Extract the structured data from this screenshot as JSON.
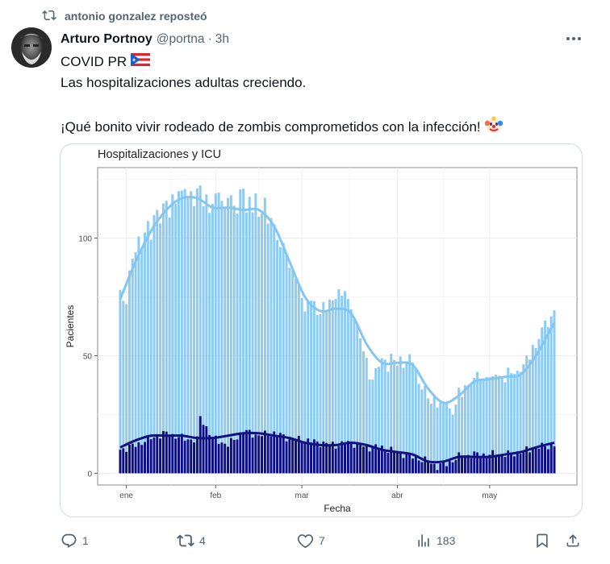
{
  "repost": {
    "text": "antonio gonzalez reposteó"
  },
  "tweet": {
    "author_name": "Arturo Portnoy",
    "handle": "@portna",
    "separator": "·",
    "time": "3h",
    "line1": "COVID PR",
    "line2": "Las hospitalizaciones adultas creciendo.",
    "line3": "¡Qué bonito vivir rodeado de zombis comprometidos con la infección!"
  },
  "chart_data": {
    "type": "bar",
    "title": "Hospitalizaciones y ICU",
    "xlabel": "Fecha",
    "ylabel": "Pacientes",
    "x_tick_labels": [
      "ene",
      "feb",
      "mar",
      "abr",
      "may"
    ],
    "y_ticks": [
      0,
      50,
      100
    ],
    "ylim": [
      -5,
      130
    ],
    "grid": true,
    "legend": "none",
    "colors": {
      "hospitalizaciones": "#8ecbf2",
      "hosp_trend": "#84c6f0",
      "icu": "#0d0d86",
      "icu_trend": "#101080"
    },
    "hospitalizaciones_anchors": [
      [
        0,
        78
      ],
      [
        1,
        73
      ],
      [
        2,
        74
      ],
      [
        3,
        85
      ],
      [
        4,
        90
      ],
      [
        5,
        95
      ],
      [
        6,
        100
      ],
      [
        7,
        97
      ],
      [
        8,
        103
      ],
      [
        9,
        105
      ],
      [
        10,
        100
      ],
      [
        11,
        110
      ],
      [
        12,
        112
      ],
      [
        13,
        108
      ],
      [
        14,
        113
      ],
      [
        15,
        115
      ],
      [
        16,
        110
      ],
      [
        17,
        118
      ],
      [
        18,
        116
      ],
      [
        19,
        120
      ],
      [
        20,
        118
      ],
      [
        21,
        122
      ],
      [
        22,
        118
      ],
      [
        23,
        120
      ],
      [
        24,
        115
      ],
      [
        25,
        119
      ],
      [
        26,
        122
      ],
      [
        27,
        115
      ],
      [
        28,
        118
      ],
      [
        29,
        112
      ],
      [
        30,
        114
      ],
      [
        31,
        117
      ],
      [
        32,
        121
      ],
      [
        33,
        116
      ],
      [
        34,
        113
      ],
      [
        35,
        118
      ],
      [
        36,
        116
      ],
      [
        37,
        114
      ],
      [
        38,
        112
      ],
      [
        39,
        120
      ],
      [
        40,
        122
      ],
      [
        41,
        110
      ],
      [
        42,
        116
      ],
      [
        43,
        113
      ],
      [
        44,
        119
      ],
      [
        45,
        109
      ],
      [
        46,
        111
      ],
      [
        47,
        115
      ],
      [
        48,
        107
      ],
      [
        49,
        110
      ],
      [
        50,
        105
      ],
      [
        51,
        100
      ],
      [
        52,
        95
      ],
      [
        53,
        97
      ],
      [
        54,
        95
      ],
      [
        55,
        87
      ],
      [
        56,
        86
      ],
      [
        57,
        83
      ],
      [
        58,
        78
      ],
      [
        59,
        76
      ],
      [
        60,
        70
      ],
      [
        61,
        72
      ],
      [
        62,
        74
      ],
      [
        63,
        72
      ],
      [
        64,
        67
      ],
      [
        65,
        70
      ],
      [
        66,
        72
      ],
      [
        67,
        69
      ],
      [
        68,
        74
      ],
      [
        69,
        72
      ],
      [
        70,
        76
      ],
      [
        71,
        79
      ],
      [
        72,
        74
      ],
      [
        73,
        78
      ],
      [
        74,
        73
      ],
      [
        75,
        70
      ],
      [
        76,
        68
      ],
      [
        77,
        62
      ],
      [
        78,
        57
      ],
      [
        79,
        52
      ],
      [
        80,
        48
      ],
      [
        81,
        42
      ],
      [
        82,
        40
      ],
      [
        83,
        43
      ],
      [
        84,
        46
      ],
      [
        85,
        48
      ],
      [
        86,
        49
      ],
      [
        87,
        45
      ],
      [
        88,
        49
      ],
      [
        89,
        48
      ],
      [
        90,
        46
      ],
      [
        91,
        49
      ],
      [
        92,
        47
      ],
      [
        93,
        47
      ],
      [
        94,
        49
      ],
      [
        95,
        48
      ],
      [
        96,
        44
      ],
      [
        97,
        39
      ],
      [
        98,
        37
      ],
      [
        99,
        35
      ],
      [
        100,
        32
      ],
      [
        101,
        30
      ],
      [
        102,
        32
      ],
      [
        103,
        30
      ],
      [
        104,
        29
      ],
      [
        105,
        28
      ],
      [
        106,
        31
      ],
      [
        107,
        27
      ],
      [
        108,
        26
      ],
      [
        109,
        30
      ],
      [
        110,
        34
      ],
      [
        111,
        33
      ],
      [
        112,
        38
      ],
      [
        113,
        37
      ],
      [
        114,
        40
      ],
      [
        115,
        39
      ],
      [
        116,
        42
      ],
      [
        117,
        41
      ],
      [
        118,
        39
      ],
      [
        119,
        42
      ],
      [
        120,
        41
      ],
      [
        121,
        39
      ],
      [
        122,
        43
      ],
      [
        123,
        42
      ],
      [
        124,
        41
      ],
      [
        125,
        40
      ],
      [
        126,
        43
      ],
      [
        127,
        42
      ],
      [
        128,
        44
      ],
      [
        129,
        43
      ],
      [
        130,
        44
      ],
      [
        131,
        46
      ],
      [
        132,
        48
      ],
      [
        133,
        50
      ],
      [
        134,
        55
      ],
      [
        135,
        53
      ],
      [
        136,
        58
      ],
      [
        137,
        60
      ],
      [
        138,
        65
      ],
      [
        139,
        64
      ],
      [
        140,
        66
      ],
      [
        141,
        70
      ]
    ],
    "hospitalizaciones_trend": [
      [
        0,
        74
      ],
      [
        5,
        90
      ],
      [
        10,
        103
      ],
      [
        15,
        112
      ],
      [
        20,
        117
      ],
      [
        25,
        117
      ],
      [
        30,
        113
      ],
      [
        35,
        113
      ],
      [
        40,
        112
      ],
      [
        45,
        112
      ],
      [
        50,
        105
      ],
      [
        55,
        90
      ],
      [
        60,
        75
      ],
      [
        65,
        69
      ],
      [
        70,
        70
      ],
      [
        75,
        68
      ],
      [
        80,
        55
      ],
      [
        85,
        47
      ],
      [
        90,
        47
      ],
      [
        95,
        46
      ],
      [
        100,
        36
      ],
      [
        105,
        30
      ],
      [
        110,
        33
      ],
      [
        115,
        39
      ],
      [
        120,
        40
      ],
      [
        125,
        41
      ],
      [
        130,
        42
      ],
      [
        135,
        50
      ],
      [
        141,
        64
      ]
    ],
    "icu_anchors": [
      [
        0,
        10
      ],
      [
        5,
        12
      ],
      [
        10,
        15
      ],
      [
        15,
        17
      ],
      [
        20,
        15
      ],
      [
        25,
        14
      ],
      [
        26,
        24
      ],
      [
        30,
        15
      ],
      [
        35,
        12
      ],
      [
        40,
        18
      ],
      [
        45,
        16
      ],
      [
        50,
        17
      ],
      [
        55,
        15
      ],
      [
        60,
        14
      ],
      [
        65,
        13
      ],
      [
        70,
        12
      ],
      [
        75,
        13
      ],
      [
        80,
        11
      ],
      [
        85,
        11
      ],
      [
        90,
        9
      ],
      [
        95,
        7
      ],
      [
        100,
        5
      ],
      [
        103,
        3
      ],
      [
        106,
        4
      ],
      [
        110,
        7
      ],
      [
        115,
        8
      ],
      [
        120,
        8
      ],
      [
        125,
        8
      ],
      [
        130,
        9
      ],
      [
        135,
        11
      ],
      [
        141,
        12
      ]
    ],
    "icu_trend": [
      [
        0,
        11
      ],
      [
        5,
        14
      ],
      [
        10,
        16
      ],
      [
        15,
        16
      ],
      [
        20,
        16
      ],
      [
        25,
        15
      ],
      [
        30,
        15
      ],
      [
        35,
        16
      ],
      [
        40,
        17
      ],
      [
        45,
        17
      ],
      [
        50,
        16
      ],
      [
        55,
        15
      ],
      [
        60,
        13
      ],
      [
        65,
        12
      ],
      [
        70,
        12
      ],
      [
        75,
        13
      ],
      [
        80,
        12
      ],
      [
        85,
        10
      ],
      [
        90,
        9
      ],
      [
        95,
        8
      ],
      [
        100,
        5
      ],
      [
        105,
        5
      ],
      [
        110,
        7
      ],
      [
        115,
        7
      ],
      [
        120,
        7
      ],
      [
        125,
        8
      ],
      [
        130,
        9
      ],
      [
        135,
        11
      ],
      [
        141,
        13
      ]
    ],
    "n_days": 142,
    "x_tick_day_index": [
      2,
      31,
      59,
      90,
      120
    ]
  },
  "actions": {
    "replies": "1",
    "reposts": "4",
    "likes": "7",
    "views": "183"
  }
}
